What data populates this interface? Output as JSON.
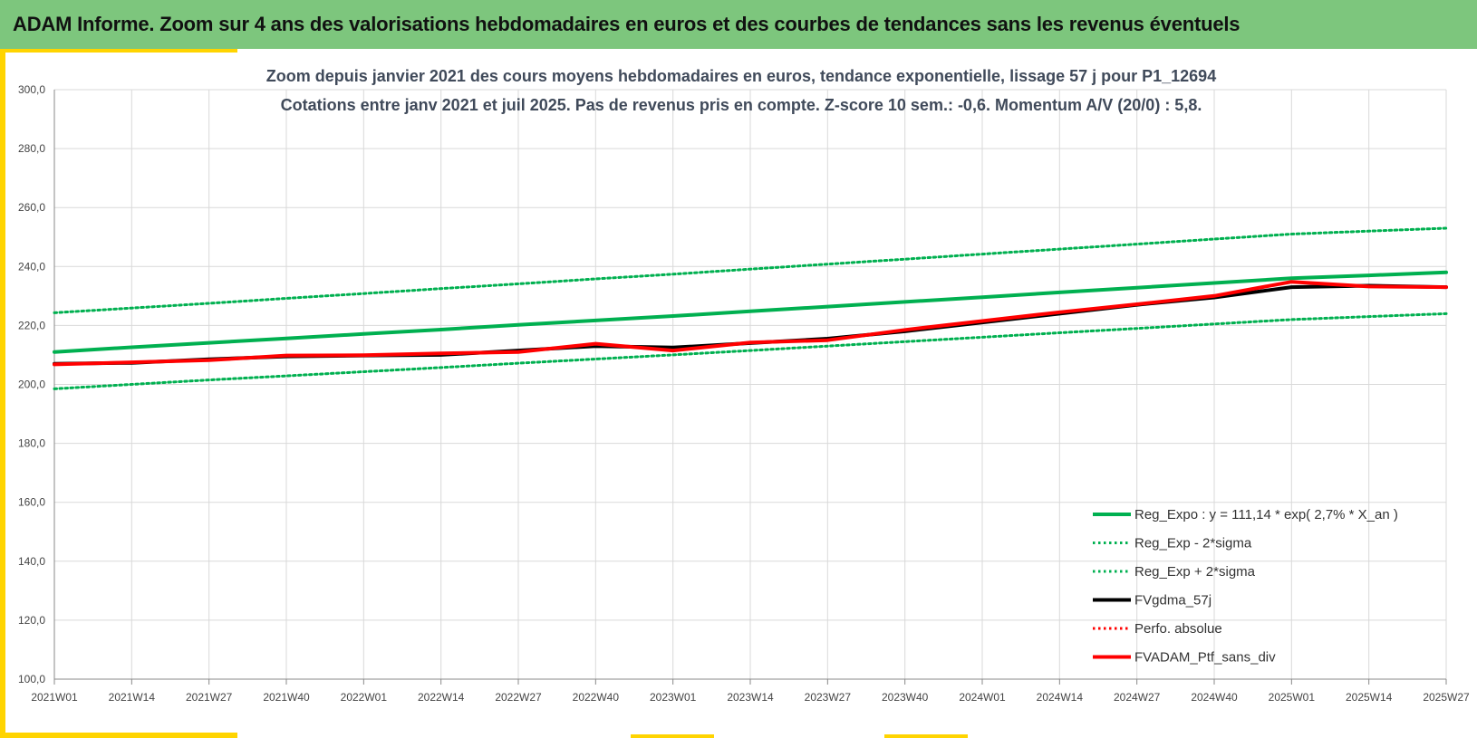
{
  "header": {
    "title": "ADAM Informe. Zoom sur 4 ans des valorisations hebdomadaires en euros et des courbes de tendances sans les revenus éventuels"
  },
  "colors": {
    "banner": "#7dc67d",
    "accent": "#ffd400",
    "trend_green": "#00b050",
    "smooth_black": "#000000",
    "portfolio_red": "#ff0000"
  },
  "chart_data": {
    "type": "line",
    "title": "Zoom depuis janvier 2021 des cours moyens hebdomadaires  en euros, tendance exponentielle, lissage 57 j pour P1_12694",
    "subtitle": "Cotations  entre janv 2021 et juil 2025. Pas de revenus pris en compte. Z-score 10 sem.: -0,6. Momentum A/V (20/0) : 5,8.",
    "xlabel": "",
    "ylabel": "",
    "ylim": [
      100,
      300
    ],
    "y_ticks": [
      "100,0",
      "120,0",
      "140,0",
      "160,0",
      "180,0",
      "200,0",
      "220,0",
      "240,0",
      "260,0",
      "280,0",
      "300,0"
    ],
    "x_ticks": [
      "2021W01",
      "2021W14",
      "2021W27",
      "2021W40",
      "2022W01",
      "2022W14",
      "2022W27",
      "2022W40",
      "2023W01",
      "2023W14",
      "2023W27",
      "2023W40",
      "2024W01",
      "2024W14",
      "2024W27",
      "2024W40",
      "2025W01",
      "2025W14",
      "2025W27"
    ],
    "grid": true,
    "legend_position": "bottom-right",
    "x": [
      "2021W01",
      "2021W14",
      "2021W27",
      "2021W40",
      "2022W01",
      "2022W14",
      "2022W27",
      "2022W40",
      "2023W01",
      "2023W14",
      "2023W27",
      "2023W40",
      "2024W01",
      "2024W14",
      "2024W27",
      "2024W40",
      "2025W01",
      "2025W14",
      "2025W27"
    ],
    "series": [
      {
        "name": "Reg_Expo : y = 111,14 * exp( 2,7% *  X_an )",
        "style": "solid-thick",
        "color": "#00b050",
        "values": [
          211.0,
          212.6,
          214.1,
          215.6,
          217.1,
          218.6,
          220.2,
          221.7,
          223.2,
          224.8,
          226.4,
          228.0,
          229.6,
          231.2,
          232.8,
          234.4,
          236.0,
          237.0,
          238.0
        ]
      },
      {
        "name": "Reg_Exp - 2*sigma",
        "style": "dotted",
        "color": "#00b050",
        "values": [
          198.5,
          200.0,
          201.5,
          202.9,
          204.3,
          205.7,
          207.2,
          208.6,
          210.0,
          211.5,
          213.0,
          214.5,
          216.0,
          217.5,
          219.0,
          220.5,
          222.0,
          223.0,
          224.0
        ]
      },
      {
        "name": "Reg_Exp + 2*sigma",
        "style": "dotted",
        "color": "#00b050",
        "values": [
          224.3,
          225.9,
          227.5,
          229.2,
          230.8,
          232.5,
          234.1,
          235.8,
          237.4,
          239.1,
          240.8,
          242.5,
          244.2,
          245.9,
          247.6,
          249.3,
          251.0,
          252.0,
          253.0
        ]
      },
      {
        "name": "FVgdma_57j",
        "style": "solid-thick",
        "color": "#000000",
        "values": [
          207.0,
          207.3,
          208.5,
          209.5,
          209.8,
          210.0,
          211.5,
          213.0,
          212.5,
          214.0,
          215.5,
          218.0,
          221.0,
          224.0,
          227.0,
          229.5,
          233.0,
          233.5,
          233.0
        ]
      },
      {
        "name": "Perfo. absolue",
        "style": "dotted",
        "color": "#ff0000",
        "values": [
          206.8,
          207.5,
          208.2,
          209.8,
          209.9,
          210.5,
          211.0,
          213.8,
          211.5,
          214.2,
          215.0,
          218.5,
          221.5,
          224.5,
          227.2,
          230.0,
          234.8,
          233.2,
          233.0
        ]
      },
      {
        "name": "FVADAM_Ptf_sans_div",
        "style": "solid-thick",
        "color": "#ff0000",
        "values": [
          206.8,
          207.5,
          208.2,
          209.8,
          209.9,
          210.5,
          211.0,
          213.8,
          211.5,
          214.2,
          215.0,
          218.5,
          221.5,
          224.5,
          227.2,
          230.0,
          234.8,
          233.2,
          233.0
        ]
      }
    ]
  }
}
